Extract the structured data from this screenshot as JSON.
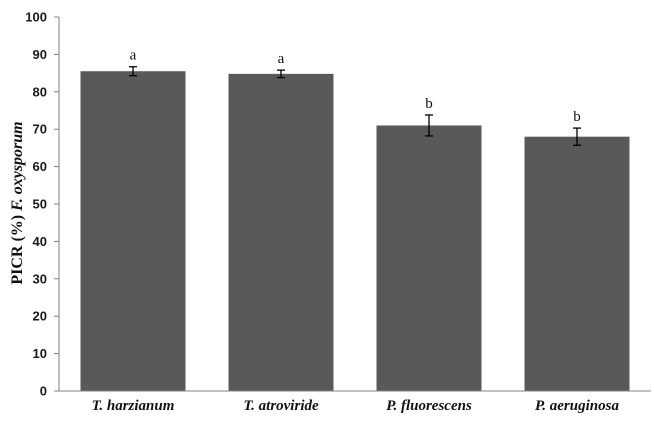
{
  "chart_data": {
    "type": "bar",
    "categories": [
      "T. harzianum",
      "T. atroviride",
      "P. fluorescens",
      "P. aeruginosa"
    ],
    "values": [
      85.5,
      84.8,
      71.0,
      68.0
    ],
    "errors": [
      1.2,
      1.0,
      2.8,
      2.3
    ],
    "significance_letters": [
      "a",
      "a",
      "b",
      "b"
    ],
    "ylabel_prefix": "PICR (%) ",
    "ylabel_italic": "F. oxysporum",
    "xlabel": "",
    "ylim": [
      0,
      100
    ],
    "yticks": [
      0,
      10,
      20,
      30,
      40,
      50,
      60,
      70,
      80,
      90,
      100
    ],
    "bar_color": "#595959",
    "grid": false,
    "legend": "none"
  }
}
